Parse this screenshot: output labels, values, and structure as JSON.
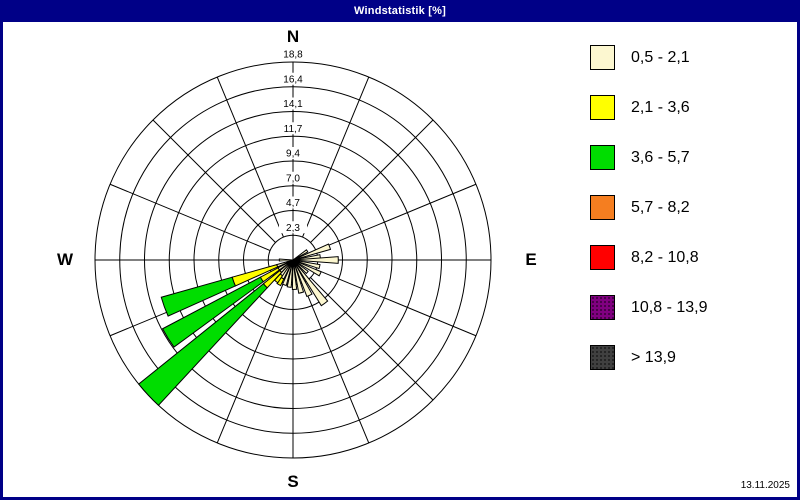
{
  "title_bar": {
    "title": "Windstatistik [%]",
    "bg_color": "#000087",
    "text_color": "#FFFFFF"
  },
  "footer": {
    "date": "13.11.2025"
  },
  "compass": {
    "north": "N",
    "east": "E",
    "south": "S",
    "west": "W"
  },
  "chart_data": {
    "type": "wind_rose",
    "unit": "%",
    "title": "Windstatistik [%]",
    "axis": {
      "max": 18.8,
      "ring_values": [
        2.35,
        4.7,
        7.05,
        9.4,
        11.75,
        14.1,
        16.45,
        18.8
      ],
      "ring_labels": [
        "2,3",
        "4,7",
        "7,0",
        "9,4",
        "11,7",
        "14,1",
        "16,4",
        "18,8"
      ],
      "spoke_step_deg": 22.5,
      "grid_color": "#000000"
    },
    "speed_classes": [
      {
        "label": "0,5 - 2,1",
        "color": "#FCF7D0",
        "textured": false
      },
      {
        "label": "2,1 - 3,6",
        "color": "#FFFF00",
        "textured": false
      },
      {
        "label": "3,6 - 5,7",
        "color": "#00DD00",
        "textured": false
      },
      {
        "label": "5,7 - 8,2",
        "color": "#F57E20",
        "textured": false
      },
      {
        "label": "8,2 - 10,8",
        "color": "#FF0000",
        "textured": false
      },
      {
        "label": "10,8 - 13,9",
        "color": "#800080",
        "textured": true
      },
      {
        "label": "> 13,9",
        "color": "#404040",
        "textured": true
      }
    ],
    "bars": [
      {
        "angle": 57,
        "segments": [
          {
            "class_index": 0,
            "to": 1.6
          }
        ]
      },
      {
        "angle": 70,
        "segments": [
          {
            "class_index": 0,
            "to": 3.7
          }
        ]
      },
      {
        "angle": 83,
        "segments": [
          {
            "class_index": 0,
            "to": 2.6
          }
        ]
      },
      {
        "angle": 90,
        "segments": [
          {
            "class_index": 0,
            "to": 4.3
          }
        ]
      },
      {
        "angle": 104,
        "segments": [
          {
            "class_index": 0,
            "to": 2.6
          }
        ]
      },
      {
        "angle": 117,
        "segments": [
          {
            "class_index": 0,
            "to": 2.9
          }
        ]
      },
      {
        "angle": 131,
        "segments": [
          {
            "class_index": 0,
            "to": 1.8
          }
        ]
      },
      {
        "angle": 144,
        "segments": [
          {
            "class_index": 0,
            "to": 5.1
          }
        ]
      },
      {
        "angle": 155,
        "segments": [
          {
            "class_index": 0,
            "to": 3.7
          }
        ]
      },
      {
        "angle": 166,
        "segments": [
          {
            "class_index": 0,
            "to": 3.2
          }
        ]
      },
      {
        "angle": 177,
        "segments": [
          {
            "class_index": 0,
            "to": 2.8
          }
        ]
      },
      {
        "angle": 188,
        "segments": [
          {
            "class_index": 0,
            "to": 2.6
          }
        ]
      },
      {
        "angle": 199,
        "segments": [
          {
            "class_index": 0,
            "to": 2.5
          }
        ]
      },
      {
        "angle": 210,
        "segments": [
          {
            "class_index": 0,
            "to": 2.0
          },
          {
            "class_index": 1,
            "to": 2.7
          }
        ]
      },
      {
        "angle": 218,
        "segments": [
          {
            "class_index": 0,
            "to": 1.8
          },
          {
            "class_index": 1,
            "to": 2.6
          }
        ]
      },
      {
        "angle": 270,
        "segments": [
          {
            "class_index": 0,
            "to": 1.3
          }
        ]
      },
      {
        "angle": 227,
        "segments": [
          {
            "class_index": 0,
            "to": 1.6
          },
          {
            "class_index": 1,
            "to": 3.6
          },
          {
            "class_index": 2,
            "to": 18.8
          }
        ]
      },
      {
        "angle": 238,
        "segments": [
          {
            "class_index": 0,
            "to": 1.6
          },
          {
            "class_index": 1,
            "to": 3.5
          },
          {
            "class_index": 2,
            "to": 14.0
          }
        ]
      },
      {
        "angle": 250,
        "segments": [
          {
            "class_index": 0,
            "to": 1.6
          },
          {
            "class_index": 1,
            "to": 6.0
          },
          {
            "class_index": 2,
            "to": 13.0
          }
        ]
      }
    ],
    "legend_position": "right"
  }
}
